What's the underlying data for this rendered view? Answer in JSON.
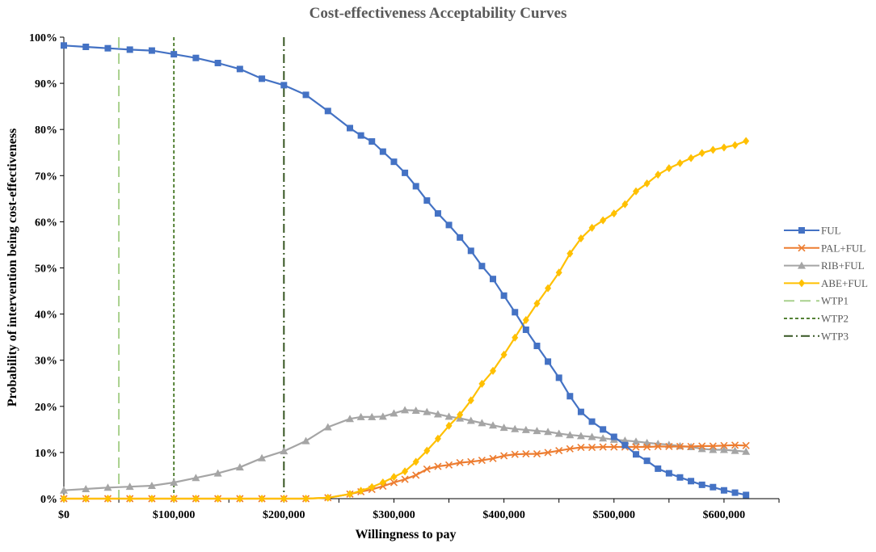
{
  "chart_data": {
    "type": "line",
    "title": "Cost-effectiveness Acceptability Curves",
    "xlabel": "Willingness to pay",
    "ylabel": "Probability of intervention being cost-effectiveness",
    "xlim": [
      0,
      650000
    ],
    "ylim": [
      0,
      1
    ],
    "x_ticks": [
      0,
      100000,
      200000,
      300000,
      400000,
      500000,
      600000
    ],
    "x_tick_labels": [
      "$0",
      "$100,000",
      "$200,000",
      "$300,000",
      "$400,000",
      "$500,000",
      "$600,000"
    ],
    "y_ticks": [
      0,
      0.1,
      0.2,
      0.3,
      0.4,
      0.5,
      0.6,
      0.7,
      0.8,
      0.9,
      1.0
    ],
    "y_tick_labels": [
      "0%",
      "10%",
      "20%",
      "30%",
      "40%",
      "50%",
      "60%",
      "70%",
      "80%",
      "90%",
      "100%"
    ],
    "grid": false,
    "legend_position": "right",
    "series": [
      {
        "name": "FUL",
        "color": "#4472C4",
        "marker": "square",
        "points": [
          [
            0,
            0.982
          ],
          [
            20000,
            0.979
          ],
          [
            40000,
            0.976
          ],
          [
            60000,
            0.973
          ],
          [
            80000,
            0.971
          ],
          [
            100000,
            0.963
          ],
          [
            120000,
            0.955
          ],
          [
            140000,
            0.944
          ],
          [
            160000,
            0.931
          ],
          [
            180000,
            0.91
          ],
          [
            200000,
            0.896
          ],
          [
            220000,
            0.875
          ],
          [
            240000,
            0.84
          ],
          [
            260000,
            0.803
          ],
          [
            270000,
            0.787
          ],
          [
            280000,
            0.774
          ],
          [
            290000,
            0.752
          ],
          [
            300000,
            0.73
          ],
          [
            310000,
            0.706
          ],
          [
            320000,
            0.677
          ],
          [
            330000,
            0.646
          ],
          [
            340000,
            0.618
          ],
          [
            350000,
            0.593
          ],
          [
            360000,
            0.566
          ],
          [
            370000,
            0.537
          ],
          [
            380000,
            0.504
          ],
          [
            390000,
            0.476
          ],
          [
            400000,
            0.44
          ],
          [
            410000,
            0.404
          ],
          [
            420000,
            0.366
          ],
          [
            430000,
            0.331
          ],
          [
            440000,
            0.297
          ],
          [
            450000,
            0.262
          ],
          [
            460000,
            0.222
          ],
          [
            470000,
            0.188
          ],
          [
            480000,
            0.167
          ],
          [
            490000,
            0.15
          ],
          [
            500000,
            0.134
          ],
          [
            510000,
            0.116
          ],
          [
            520000,
            0.096
          ],
          [
            530000,
            0.082
          ],
          [
            540000,
            0.065
          ],
          [
            550000,
            0.055
          ],
          [
            560000,
            0.046
          ],
          [
            570000,
            0.038
          ],
          [
            580000,
            0.03
          ],
          [
            590000,
            0.025
          ],
          [
            600000,
            0.018
          ],
          [
            610000,
            0.013
          ],
          [
            620000,
            0.008
          ]
        ]
      },
      {
        "name": "PAL+FUL",
        "color": "#ED7D31",
        "marker": "x",
        "points": [
          [
            0,
            0
          ],
          [
            20000,
            0
          ],
          [
            40000,
            0
          ],
          [
            60000,
            0
          ],
          [
            80000,
            0
          ],
          [
            100000,
            0
          ],
          [
            120000,
            0
          ],
          [
            140000,
            0
          ],
          [
            160000,
            0
          ],
          [
            180000,
            0
          ],
          [
            200000,
            0
          ],
          [
            220000,
            0
          ],
          [
            240000,
            0.002
          ],
          [
            260000,
            0.01
          ],
          [
            270000,
            0.015
          ],
          [
            280000,
            0.02
          ],
          [
            290000,
            0.027
          ],
          [
            300000,
            0.035
          ],
          [
            310000,
            0.042
          ],
          [
            320000,
            0.051
          ],
          [
            330000,
            0.064
          ],
          [
            340000,
            0.07
          ],
          [
            350000,
            0.073
          ],
          [
            360000,
            0.078
          ],
          [
            370000,
            0.08
          ],
          [
            380000,
            0.083
          ],
          [
            390000,
            0.087
          ],
          [
            400000,
            0.093
          ],
          [
            410000,
            0.096
          ],
          [
            420000,
            0.097
          ],
          [
            430000,
            0.097
          ],
          [
            440000,
            0.1
          ],
          [
            450000,
            0.104
          ],
          [
            460000,
            0.108
          ],
          [
            470000,
            0.111
          ],
          [
            480000,
            0.111
          ],
          [
            490000,
            0.112
          ],
          [
            500000,
            0.112
          ],
          [
            510000,
            0.112
          ],
          [
            520000,
            0.112
          ],
          [
            530000,
            0.112
          ],
          [
            540000,
            0.113
          ],
          [
            550000,
            0.113
          ],
          [
            560000,
            0.113
          ],
          [
            570000,
            0.113
          ],
          [
            580000,
            0.114
          ],
          [
            590000,
            0.114
          ],
          [
            600000,
            0.115
          ],
          [
            610000,
            0.116
          ],
          [
            620000,
            0.115
          ]
        ]
      },
      {
        "name": "RIB+FUL",
        "color": "#A5A5A5",
        "marker": "triangle",
        "points": [
          [
            0,
            0.018
          ],
          [
            20000,
            0.021
          ],
          [
            40000,
            0.024
          ],
          [
            60000,
            0.026
          ],
          [
            80000,
            0.028
          ],
          [
            100000,
            0.035
          ],
          [
            120000,
            0.045
          ],
          [
            140000,
            0.055
          ],
          [
            160000,
            0.068
          ],
          [
            180000,
            0.088
          ],
          [
            200000,
            0.103
          ],
          [
            220000,
            0.125
          ],
          [
            240000,
            0.155
          ],
          [
            260000,
            0.173
          ],
          [
            270000,
            0.177
          ],
          [
            280000,
            0.177
          ],
          [
            290000,
            0.178
          ],
          [
            300000,
            0.185
          ],
          [
            310000,
            0.192
          ],
          [
            320000,
            0.191
          ],
          [
            330000,
            0.188
          ],
          [
            340000,
            0.183
          ],
          [
            350000,
            0.178
          ],
          [
            360000,
            0.174
          ],
          [
            370000,
            0.169
          ],
          [
            380000,
            0.164
          ],
          [
            390000,
            0.159
          ],
          [
            400000,
            0.154
          ],
          [
            410000,
            0.151
          ],
          [
            420000,
            0.149
          ],
          [
            430000,
            0.147
          ],
          [
            440000,
            0.145
          ],
          [
            450000,
            0.141
          ],
          [
            460000,
            0.138
          ],
          [
            470000,
            0.136
          ],
          [
            480000,
            0.134
          ],
          [
            490000,
            0.131
          ],
          [
            500000,
            0.128
          ],
          [
            510000,
            0.126
          ],
          [
            520000,
            0.124
          ],
          [
            530000,
            0.121
          ],
          [
            540000,
            0.119
          ],
          [
            550000,
            0.117
          ],
          [
            560000,
            0.114
          ],
          [
            570000,
            0.112
          ],
          [
            580000,
            0.108
          ],
          [
            590000,
            0.106
          ],
          [
            600000,
            0.106
          ],
          [
            610000,
            0.104
          ],
          [
            620000,
            0.102
          ]
        ]
      },
      {
        "name": "ABE+FUL",
        "color": "#FFC000",
        "marker": "diamond",
        "points": [
          [
            0,
            0
          ],
          [
            20000,
            0
          ],
          [
            40000,
            0
          ],
          [
            60000,
            0
          ],
          [
            80000,
            0
          ],
          [
            100000,
            0
          ],
          [
            120000,
            0
          ],
          [
            140000,
            0
          ],
          [
            160000,
            0
          ],
          [
            180000,
            0
          ],
          [
            200000,
            0
          ],
          [
            220000,
            0
          ],
          [
            240000,
            0.002
          ],
          [
            260000,
            0.01
          ],
          [
            270000,
            0.017
          ],
          [
            280000,
            0.025
          ],
          [
            290000,
            0.035
          ],
          [
            300000,
            0.047
          ],
          [
            310000,
            0.059
          ],
          [
            320000,
            0.08
          ],
          [
            330000,
            0.104
          ],
          [
            340000,
            0.13
          ],
          [
            350000,
            0.158
          ],
          [
            360000,
            0.182
          ],
          [
            370000,
            0.213
          ],
          [
            380000,
            0.249
          ],
          [
            390000,
            0.277
          ],
          [
            400000,
            0.312
          ],
          [
            410000,
            0.349
          ],
          [
            420000,
            0.387
          ],
          [
            430000,
            0.423
          ],
          [
            440000,
            0.456
          ],
          [
            450000,
            0.49
          ],
          [
            460000,
            0.531
          ],
          [
            470000,
            0.564
          ],
          [
            480000,
            0.587
          ],
          [
            490000,
            0.603
          ],
          [
            500000,
            0.618
          ],
          [
            510000,
            0.638
          ],
          [
            520000,
            0.666
          ],
          [
            530000,
            0.683
          ],
          [
            540000,
            0.702
          ],
          [
            550000,
            0.716
          ],
          [
            560000,
            0.727
          ],
          [
            570000,
            0.738
          ],
          [
            580000,
            0.749
          ],
          [
            590000,
            0.756
          ],
          [
            600000,
            0.761
          ],
          [
            610000,
            0.766
          ],
          [
            620000,
            0.775
          ]
        ]
      }
    ],
    "reference_lines": [
      {
        "name": "WTP1",
        "x": 50000,
        "color": "#A9D18E",
        "dash": "dashed"
      },
      {
        "name": "WTP2",
        "x": 100000,
        "color": "#548235",
        "dash": "short-dashed"
      },
      {
        "name": "WTP3",
        "x": 200000,
        "color": "#375623",
        "dash": "dash-dot"
      }
    ],
    "legend_entries": [
      "FUL",
      "PAL+FUL",
      "RIB+FUL",
      "ABE+FUL",
      "WTP1",
      "WTP2",
      "WTP3"
    ]
  }
}
